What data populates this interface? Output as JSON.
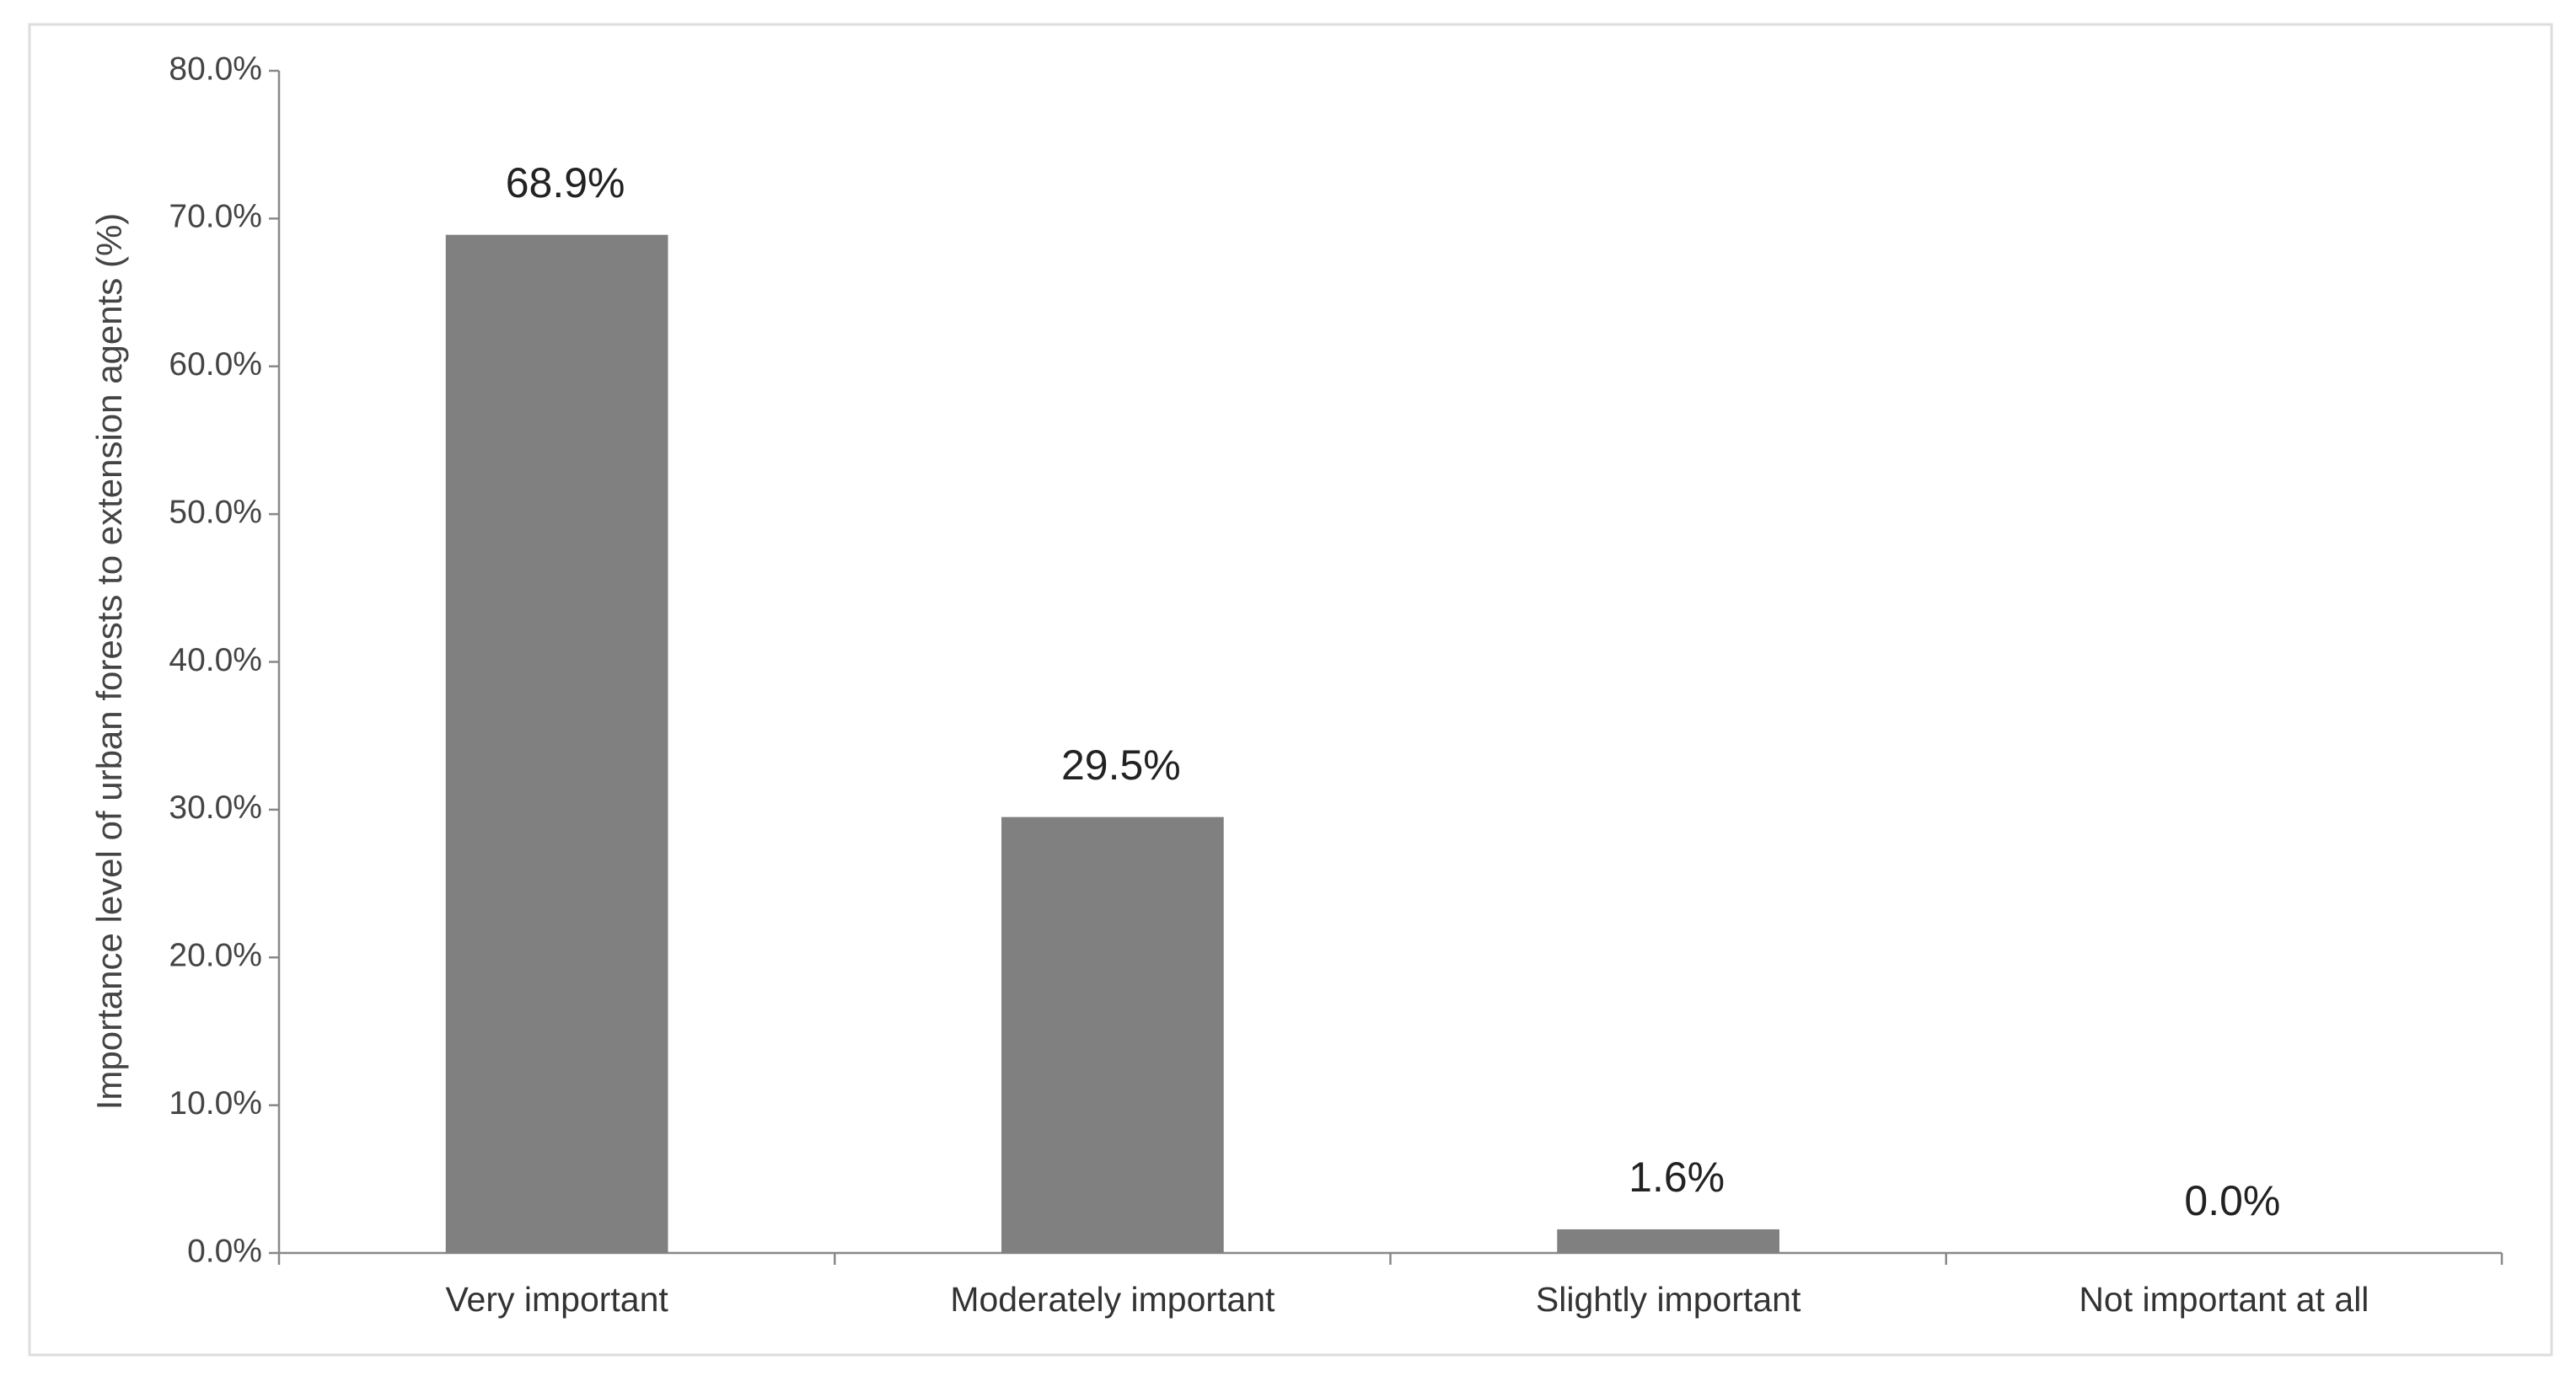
{
  "chart_data": {
    "type": "bar",
    "y_axis_label": "Importance level of urban forests to extension agents (%)",
    "categories": [
      "Very important",
      "Moderately important",
      "Slightly important",
      "Not important at all"
    ],
    "values": [
      68.9,
      29.5,
      1.6,
      0.0
    ],
    "value_labels": [
      "68.9%",
      "29.5%",
      "1.6%",
      "0.0%"
    ],
    "color": "#808080",
    "ylim": [
      0,
      80
    ],
    "yticks": [
      {
        "value": 0,
        "label": "0.0%"
      },
      {
        "value": 10,
        "label": "10.0%"
      },
      {
        "value": 20,
        "label": "20.0%"
      },
      {
        "value": 30,
        "label": "30.0%"
      },
      {
        "value": 40,
        "label": "40.0%"
      },
      {
        "value": 50,
        "label": "50.0%"
      },
      {
        "value": 60,
        "label": "60.0%"
      },
      {
        "value": 70,
        "label": "70.0%"
      },
      {
        "value": 80,
        "label": "80.0%"
      }
    ],
    "grid": false
  }
}
